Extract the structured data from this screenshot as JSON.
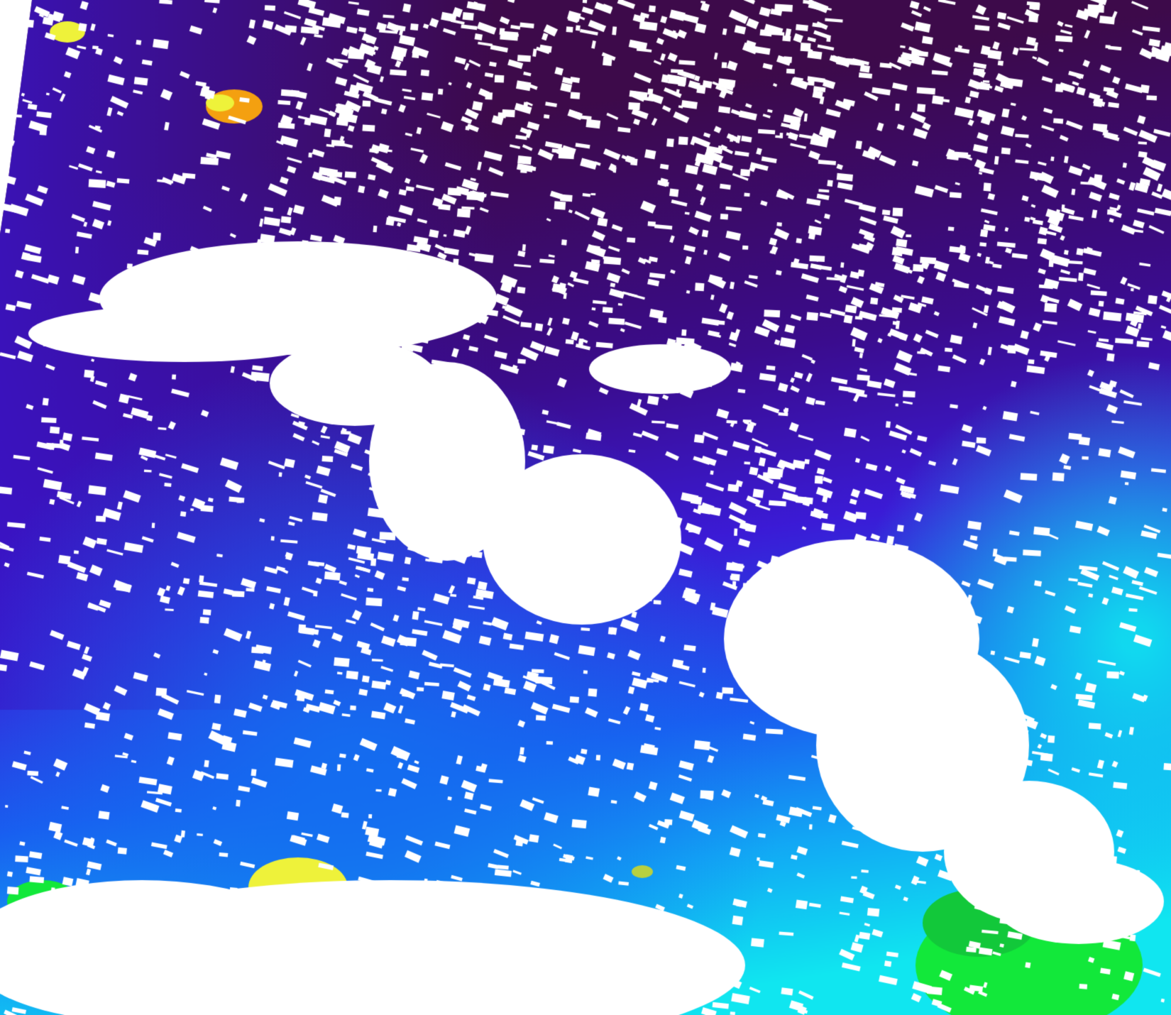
{
  "image": {
    "kind": "satellite-colormap-swath",
    "colormap": [
      "#3d0a4a",
      "#3a0c8c",
      "#3b1bd6",
      "#1a5cf0",
      "#12a8f5",
      "#10e6f0",
      "#12e83a",
      "#eef23a",
      "#f4a010",
      "#ffffff"
    ],
    "mask_color": "#ffffff"
  }
}
